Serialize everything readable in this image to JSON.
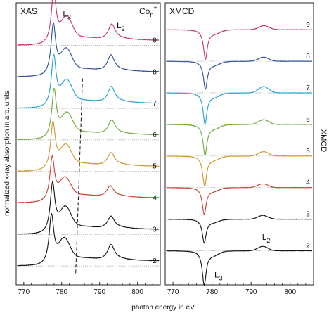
{
  "chart_data": [
    {
      "type": "line",
      "panel_label": "XAS",
      "species_label": {
        "base": "Co",
        "sub": "n",
        "sup": "+"
      },
      "edge_labels": [
        {
          "text": "L",
          "sub": "3",
          "x": 780.3,
          "y": 9.72
        },
        {
          "text": "L",
          "sub": "2",
          "x": 794.5,
          "y": 9.35
        }
      ],
      "xlim": [
        768,
        806
      ],
      "ylim": [
        1.2,
        10.15
      ],
      "xticks": [
        770,
        780,
        790,
        800
      ],
      "ylabel": "normalized x-ray absorption in arb. units",
      "dashed_trend_line": {
        "x": [
          785.5,
          783.7
        ],
        "y": [
          7.75,
          1.55
        ]
      },
      "series": [
        {
          "name": "2",
          "color": "#111111",
          "baseline": 1.8,
          "l3_peak": 777.3,
          "l3_amp": 1.55,
          "l2_peak": 793.0,
          "l2_amp": 0.48
        },
        {
          "name": "3",
          "color": "#111111",
          "baseline": 2.8,
          "l3_peak": 777.6,
          "l3_amp": 1.55,
          "l2_peak": 793.0,
          "l2_amp": 0.38
        },
        {
          "name": "4",
          "color": "#c8402f",
          "baseline": 3.8,
          "l3_peak": 777.5,
          "l3_amp": 1.38,
          "l2_peak": 792.8,
          "l2_amp": 0.34
        },
        {
          "name": "5",
          "color": "#d1962a",
          "baseline": 4.8,
          "l3_peak": 777.7,
          "l3_amp": 1.48,
          "l2_peak": 793.0,
          "l2_amp": 0.4
        },
        {
          "name": "6",
          "color": "#6ea83a",
          "baseline": 5.8,
          "l3_peak": 778.0,
          "l3_amp": 1.52,
          "l2_peak": 793.2,
          "l2_amp": 0.44
        },
        {
          "name": "7",
          "color": "#1fa3d0",
          "baseline": 6.8,
          "l3_peak": 777.9,
          "l3_amp": 1.6,
          "l2_peak": 793.1,
          "l2_amp": 0.5
        },
        {
          "name": "8",
          "color": "#2f4f9a",
          "baseline": 7.8,
          "l3_peak": 777.8,
          "l3_amp": 1.6,
          "l2_peak": 793.0,
          "l2_amp": 0.5
        },
        {
          "name": "9",
          "color": "#c8336e",
          "baseline": 8.8,
          "l3_peak": 777.9,
          "l3_amp": 1.65,
          "l2_peak": 793.2,
          "l2_amp": 0.48
        }
      ]
    },
    {
      "type": "line",
      "panel_label": "XMCD",
      "edge_labels": [
        {
          "text": "L",
          "sub": "3",
          "x": 780.6,
          "y": 0.95
        },
        {
          "text": "L",
          "sub": "2",
          "x": 792.8,
          "y": 2.15
        }
      ],
      "xlim": [
        768,
        806
      ],
      "ylim": [
        0.72,
        9.65
      ],
      "xticks": [
        770,
        780,
        790,
        800
      ],
      "ylabel": "XMCD",
      "series": [
        {
          "name": "2",
          "color": "#111111",
          "baseline": 1.8,
          "l3_peak": 778.0,
          "l3_amp": 1.05,
          "l2_peak": 793.0,
          "l2_amp": 0.14
        },
        {
          "name": "3",
          "color": "#111111",
          "baseline": 2.8,
          "l3_peak": 778.0,
          "l3_amp": 0.72,
          "l2_peak": 793.0,
          "l2_amp": 0.12
        },
        {
          "name": "4",
          "color": "#c8402f",
          "baseline": 3.8,
          "l3_peak": 778.0,
          "l3_amp": 0.82,
          "l2_peak": 793.0,
          "l2_amp": 0.12
        },
        {
          "name": "5",
          "color": "#d1962a",
          "baseline": 4.8,
          "l3_peak": 778.1,
          "l3_amp": 0.92,
          "l2_peak": 793.2,
          "l2_amp": 0.14
        },
        {
          "name": "6",
          "color": "#6ea83a",
          "baseline": 5.8,
          "l3_peak": 778.2,
          "l3_amp": 0.95,
          "l2_peak": 793.2,
          "l2_amp": 0.15
        },
        {
          "name": "7",
          "color": "#1fa3d0",
          "baseline": 6.8,
          "l3_peak": 778.2,
          "l3_amp": 0.95,
          "l2_peak": 793.2,
          "l2_amp": 0.2
        },
        {
          "name": "8",
          "color": "#2f4f9a",
          "baseline": 7.8,
          "l3_peak": 778.3,
          "l3_amp": 0.85,
          "l2_peak": 793.2,
          "l2_amp": 0.13
        },
        {
          "name": "9",
          "color": "#c8336e",
          "baseline": 8.8,
          "l3_peak": 778.3,
          "l3_amp": 0.9,
          "l2_peak": 793.3,
          "l2_amp": 0.13
        }
      ]
    }
  ],
  "shared_xlabel": "photon energy in eV"
}
